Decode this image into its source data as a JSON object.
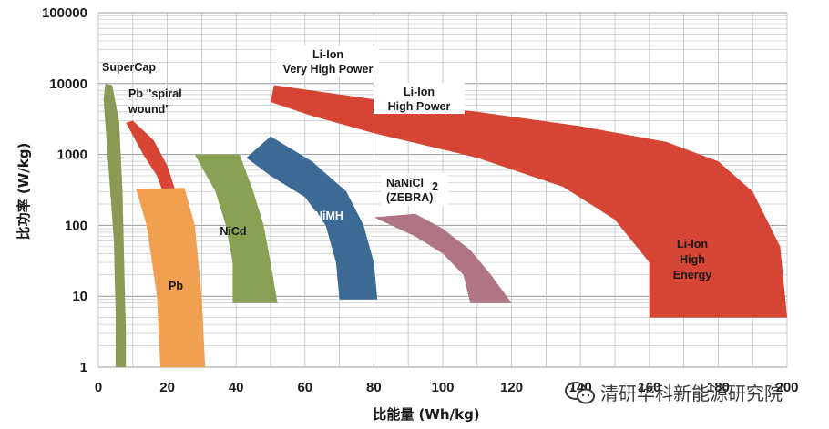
{
  "chart_data": {
    "type": "area",
    "title": "",
    "xlabel": "比能量 (Wh/kg)",
    "ylabel": "比功率 (W/kg)",
    "x_scale": "linear",
    "y_scale": "log",
    "xlim": [
      0,
      200
    ],
    "ylim": [
      1,
      100000
    ],
    "grid": true,
    "x_ticks": [
      "0",
      "20",
      "40",
      "60",
      "80",
      "100",
      "120",
      "140",
      "160",
      "180",
      "200"
    ],
    "y_ticks": [
      "1",
      "10",
      "100",
      "1000",
      "10000",
      "100000"
    ],
    "regions": [
      {
        "name": "SuperCap",
        "color": "#8a9a55",
        "labels": [
          "SuperCap"
        ],
        "polygon": [
          [
            5,
            1
          ],
          [
            8,
            1
          ],
          [
            8,
            3
          ],
          [
            7.5,
            30
          ],
          [
            7,
            300
          ],
          [
            6,
            3000
          ],
          [
            4,
            9500
          ],
          [
            2,
            10000
          ],
          [
            1.5,
            6000
          ],
          [
            3,
            600
          ],
          [
            4.5,
            60
          ],
          [
            5,
            6
          ],
          [
            5,
            1
          ]
        ]
      },
      {
        "name": "Pb spiral wound",
        "color": "#d94535",
        "labels": [
          "Pb \"spiral",
          "wound\""
        ],
        "polygon": [
          [
            8,
            2800
          ],
          [
            10,
            3000
          ],
          [
            16,
            1600
          ],
          [
            20,
            700
          ],
          [
            23,
            250
          ],
          [
            23,
            90
          ],
          [
            20,
            90
          ],
          [
            20,
            200
          ],
          [
            17,
            500
          ],
          [
            13,
            1000
          ],
          [
            9,
            2300
          ],
          [
            8,
            2800
          ]
        ]
      },
      {
        "name": "Pb",
        "color": "#f0a050",
        "labels": [
          "Pb"
        ],
        "polygon": [
          [
            11,
            320
          ],
          [
            25,
            340
          ],
          [
            28,
            100
          ],
          [
            30,
            10
          ],
          [
            31,
            1
          ],
          [
            18,
            1
          ],
          [
            17,
            10
          ],
          [
            14,
            100
          ],
          [
            11,
            320
          ]
        ]
      },
      {
        "name": "NiCd",
        "color": "#8aa055",
        "labels": [
          "NiCd"
        ],
        "polygon": [
          [
            28,
            1000
          ],
          [
            41,
            1000
          ],
          [
            45,
            300
          ],
          [
            48,
            100
          ],
          [
            50,
            30
          ],
          [
            52,
            8
          ],
          [
            39,
            8
          ],
          [
            39,
            30
          ],
          [
            37,
            100
          ],
          [
            34,
            300
          ],
          [
            28,
            1000
          ]
        ]
      },
      {
        "name": "NiMH",
        "color": "#3d6a95",
        "labels": [
          "NiMH"
        ],
        "polygon": [
          [
            43,
            900
          ],
          [
            50,
            1800
          ],
          [
            62,
            800
          ],
          [
            72,
            300
          ],
          [
            77,
            100
          ],
          [
            80,
            30
          ],
          [
            81,
            9
          ],
          [
            70,
            9
          ],
          [
            69,
            30
          ],
          [
            66,
            100
          ],
          [
            60,
            250
          ],
          [
            50,
            500
          ],
          [
            43,
            900
          ]
        ]
      },
      {
        "name": "NaNiCl2 (ZEBRA)",
        "color": "#b07585",
        "labels": [
          "NaNiCl",
          "2",
          "(ZEBRA)"
        ],
        "polygon": [
          [
            80,
            130
          ],
          [
            92,
            145
          ],
          [
            100,
            90
          ],
          [
            108,
            45
          ],
          [
            114,
            20
          ],
          [
            120,
            8
          ],
          [
            108,
            8
          ],
          [
            106,
            20
          ],
          [
            100,
            40
          ],
          [
            92,
            70
          ],
          [
            80,
            130
          ]
        ]
      },
      {
        "name": "Li-Ion",
        "color": "#d64534",
        "labels": [
          "Li-Ion",
          "Very High Power",
          "Li-Ion",
          "High Power",
          "Li-Ion",
          "High",
          "Energy"
        ],
        "polygon": [
          [
            51,
            9500
          ],
          [
            80,
            6000
          ],
          [
            110,
            4000
          ],
          [
            140,
            2500
          ],
          [
            165,
            1500
          ],
          [
            180,
            800
          ],
          [
            190,
            300
          ],
          [
            198,
            50
          ],
          [
            200,
            5
          ],
          [
            160,
            5
          ],
          [
            160,
            30
          ],
          [
            150,
            120
          ],
          [
            135,
            350
          ],
          [
            110,
            900
          ],
          [
            80,
            2000
          ],
          [
            62,
            3500
          ],
          [
            50,
            5500
          ],
          [
            51,
            9500
          ]
        ]
      }
    ]
  },
  "watermark": {
    "icon": "wechat-icon",
    "text": "清研华科新能源研究院"
  },
  "colors": {
    "background": "#ffffff",
    "grid_major": "#9a9a9a",
    "grid_minor": "#c8c8c8"
  }
}
